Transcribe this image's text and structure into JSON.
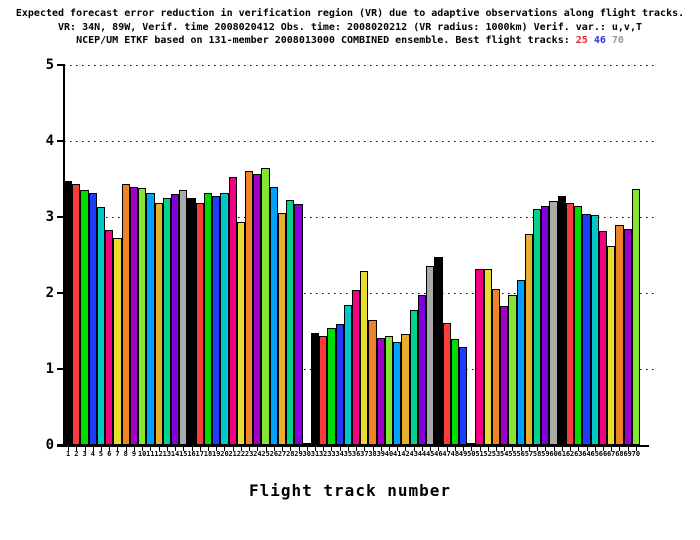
{
  "title": {
    "line1": "Expected forecast error reduction in verification region (VR) due to adaptive observations along flight tracks.",
    "line2": "VR: 34N, 89W, Verif. time 2008020412 Obs. time: 2008020212 (VR radius: 1000km)  Verif. var.: u,v,T",
    "line3_prefix": "NCEP/UM ETKF based on 131-member 2008013000 COMBINED ensemble.  Best flight tracks: ",
    "best_tracks": [
      {
        "track": "25",
        "color": "#e02828"
      },
      {
        "track": "46",
        "color": "#3232dc"
      },
      {
        "track": "70",
        "color": "#969696"
      }
    ]
  },
  "chart_data": {
    "type": "bar",
    "title": "Expected forecast error reduction in verification region (VR) due to adaptive observations along flight tracks.",
    "xlabel": "Flight track number",
    "ylabel": "",
    "ylim": [
      0,
      5
    ],
    "yticks": [
      0,
      1,
      2,
      3,
      4,
      5
    ],
    "grid": "horizontal-dotted",
    "legend": "none",
    "categories": [
      1,
      2,
      3,
      4,
      5,
      6,
      7,
      8,
      9,
      10,
      11,
      12,
      13,
      14,
      15,
      16,
      17,
      18,
      19,
      20,
      21,
      22,
      23,
      24,
      25,
      26,
      27,
      28,
      29,
      30,
      31,
      32,
      33,
      34,
      35,
      36,
      37,
      38,
      39,
      40,
      41,
      42,
      43,
      44,
      45,
      46,
      47,
      48,
      49,
      50,
      51,
      52,
      53,
      54,
      55,
      56,
      57,
      58,
      59,
      60,
      61,
      62,
      63,
      64,
      65,
      66,
      67,
      68,
      69,
      70
    ],
    "values": [
      3.48,
      3.43,
      3.35,
      3.31,
      3.13,
      2.83,
      2.72,
      3.43,
      3.4,
      3.38,
      3.32,
      3.19,
      3.25,
      3.3,
      3.36,
      3.25,
      3.18,
      3.32,
      3.28,
      3.31,
      3.53,
      2.93,
      3.61,
      3.57,
      3.64,
      3.39,
      3.05,
      3.23,
      3.17,
      0.02,
      1.47,
      1.43,
      1.54,
      1.59,
      1.84,
      2.04,
      2.29,
      1.65,
      1.41,
      1.43,
      1.35,
      1.46,
      1.78,
      1.98,
      2.35,
      2.48,
      1.61,
      1.39,
      1.29,
      0.02,
      2.32,
      2.32,
      2.05,
      1.83,
      1.97,
      2.17,
      2.78,
      3.11,
      3.14,
      3.21,
      3.28,
      3.19,
      3.14,
      3.04,
      3.03,
      2.82,
      2.62,
      2.9,
      2.84,
      3.37
    ],
    "bar_color_cycle": [
      "#000000",
      "#fa3c3c",
      "#00dc00",
      "#1e3cff",
      "#00c8c8",
      "#f00082",
      "#e6dc32",
      "#f08228",
      "#a000c8",
      "#82e632",
      "#00a0ff",
      "#e6af2d",
      "#00d28c",
      "#8200dc",
      "#aaaaaa"
    ]
  }
}
